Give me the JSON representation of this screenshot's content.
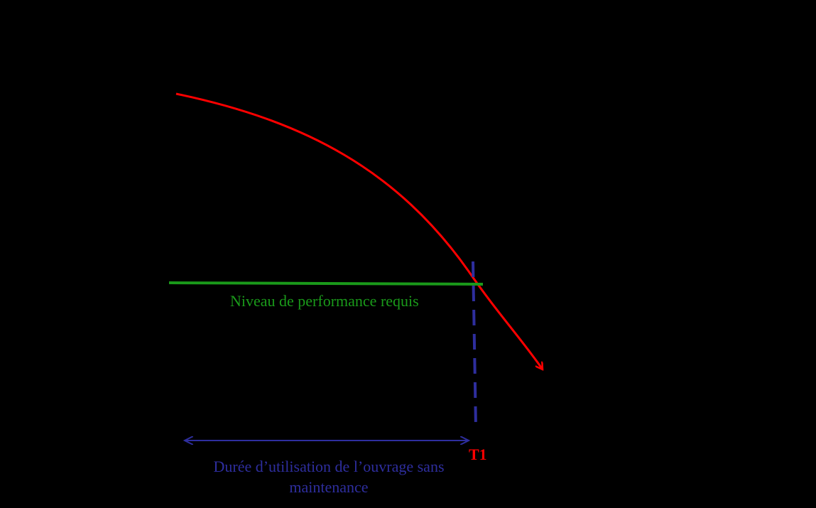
{
  "labels": {
    "required_level": "Niveau de performance requis",
    "t1": "T1",
    "duration_line1": "Durée d’utilisation de l’ouvrage sans",
    "duration_line2": "maintenance"
  },
  "colors": {
    "background": "#000000",
    "performance_curve": "#ff0000",
    "required_level": "#1a9a1a",
    "t1_marker": "#2e2e9e",
    "duration": "#2e2e9e",
    "t1_text": "#ff0000"
  }
}
